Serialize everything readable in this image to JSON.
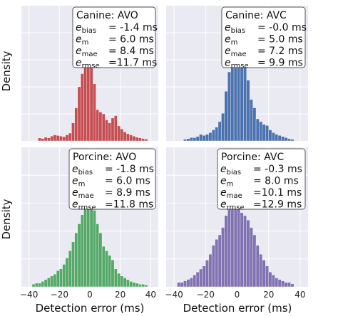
{
  "figure": {
    "ylabel": "Density",
    "xlabel": "Detection error (ms)",
    "xticks": [
      -40,
      -20,
      0,
      20,
      40
    ],
    "background": "#eaeaf2",
    "grid": true
  },
  "chart_data": [
    {
      "type": "bar",
      "panel": "top-left",
      "title": "Canine: AVO",
      "color": "#c44e52",
      "stats": [
        {
          "sym": "e",
          "sub": "bias",
          "val": "= -1.4 ms"
        },
        {
          "sym": "e",
          "sub": "m",
          "val": "= 6.0 ms"
        },
        {
          "sym": "e",
          "sub": "mae",
          "val": "= 8.4 ms"
        },
        {
          "sym": "e",
          "sub": "rmse",
          "val": "=11.7 ms"
        }
      ],
      "x": [
        -33,
        -31,
        -29,
        -27,
        -25,
        -23,
        -21,
        -19,
        -17,
        -15,
        -13,
        -11,
        -9,
        -7,
        -5,
        -3,
        -1,
        1,
        3,
        5,
        7,
        9,
        11,
        13,
        15,
        17,
        19,
        21,
        23,
        25,
        27,
        29,
        31,
        33,
        35,
        37
      ],
      "values": [
        0.005,
        0.004,
        0.006,
        0.005,
        0.008,
        0.01,
        0.009,
        0.008,
        0.007,
        0.01,
        0.013,
        0.03,
        0.055,
        0.09,
        0.112,
        0.205,
        0.188,
        0.215,
        0.095,
        0.052,
        0.048,
        0.045,
        0.035,
        0.03,
        0.038,
        0.042,
        0.025,
        0.02,
        0.015,
        0.012,
        0.01,
        0.008,
        0.006,
        0.005,
        0.004,
        0.003
      ],
      "ylim": [
        0,
        0.225
      ],
      "xlim": [
        -45,
        45
      ]
    },
    {
      "type": "bar",
      "panel": "top-right",
      "title": "Canine: AVC",
      "color": "#4c72b0",
      "stats": [
        {
          "sym": "e",
          "sub": "bias",
          "val": "= -0.0 ms"
        },
        {
          "sym": "e",
          "sub": "m",
          "val": "= 5.0 ms"
        },
        {
          "sym": "e",
          "sub": "mae",
          "val": "= 7.2 ms"
        },
        {
          "sym": "e",
          "sub": "rmse",
          "val": "= 9.9 ms"
        }
      ],
      "x": [
        -33,
        -31,
        -29,
        -27,
        -25,
        -23,
        -21,
        -19,
        -17,
        -15,
        -13,
        -11,
        -9,
        -7,
        -5,
        -3,
        -1,
        1,
        3,
        5,
        7,
        9,
        11,
        13,
        15,
        17,
        19,
        21,
        23,
        25,
        27,
        29,
        31,
        33,
        35
      ],
      "values": [
        0.003,
        0.004,
        0.006,
        0.006,
        0.008,
        0.012,
        0.01,
        0.012,
        0.015,
        0.02,
        0.025,
        0.035,
        0.05,
        0.09,
        0.125,
        0.16,
        0.195,
        0.235,
        0.2,
        0.145,
        0.11,
        0.075,
        0.06,
        0.04,
        0.035,
        0.03,
        0.028,
        0.02,
        0.015,
        0.012,
        0.01,
        0.008,
        0.006,
        0.004,
        0.003
      ],
      "ylim": [
        0,
        0.245
      ],
      "xlim": [
        -45,
        45
      ]
    },
    {
      "type": "bar",
      "panel": "bottom-left",
      "title": "Porcine: AVO",
      "color": "#55a868",
      "stats": [
        {
          "sym": "e",
          "sub": "bias",
          "val": "= -1.8 ms"
        },
        {
          "sym": "e",
          "sub": "m",
          "val": "= 6.0 ms"
        },
        {
          "sym": "e",
          "sub": "mae",
          "val": "= 8.9 ms"
        },
        {
          "sym": "e",
          "sub": "rmse",
          "val": "=11.8 ms"
        }
      ],
      "x": [
        -37,
        -35,
        -33,
        -31,
        -29,
        -27,
        -25,
        -23,
        -21,
        -19,
        -17,
        -15,
        -13,
        -11,
        -9,
        -7,
        -5,
        -3,
        -1,
        1,
        3,
        5,
        7,
        9,
        11,
        13,
        15,
        17,
        19,
        21,
        23,
        25,
        27,
        29,
        31,
        33,
        35,
        37
      ],
      "values": [
        0.003,
        0.004,
        0.004,
        0.006,
        0.008,
        0.01,
        0.012,
        0.014,
        0.018,
        0.02,
        0.025,
        0.032,
        0.04,
        0.05,
        0.06,
        0.07,
        0.08,
        0.09,
        0.095,
        0.09,
        0.085,
        0.07,
        0.06,
        0.045,
        0.04,
        0.035,
        0.03,
        0.02,
        0.015,
        0.012,
        0.01,
        0.008,
        0.006,
        0.005,
        0.004,
        0.003,
        0.003,
        0.002
      ],
      "ylim": [
        0,
        0.155
      ],
      "xlim": [
        -45,
        45
      ]
    },
    {
      "type": "bar",
      "panel": "bottom-right",
      "title": "Porcine: AVC",
      "color": "#8172b2",
      "stats": [
        {
          "sym": "e",
          "sub": "bias",
          "val": "= -0.3 ms"
        },
        {
          "sym": "e",
          "sub": "m",
          "val": "= 8.0 ms"
        },
        {
          "sym": "e",
          "sub": "mae",
          "val": "=10.1 ms"
        },
        {
          "sym": "e",
          "sub": "rmse",
          "val": "=12.9 ms"
        }
      ],
      "x": [
        -37,
        -35,
        -33,
        -31,
        -29,
        -27,
        -25,
        -23,
        -21,
        -19,
        -17,
        -15,
        -13,
        -11,
        -9,
        -7,
        -5,
        -3,
        -1,
        1,
        3,
        5,
        7,
        9,
        11,
        13,
        15,
        17,
        19,
        21,
        23,
        25,
        27,
        29,
        31,
        33,
        35
      ],
      "values": [
        0.003,
        0.003,
        0.004,
        0.005,
        0.006,
        0.008,
        0.01,
        0.012,
        0.014,
        0.018,
        0.022,
        0.028,
        0.032,
        0.035,
        0.04,
        0.048,
        0.055,
        0.058,
        0.06,
        0.057,
        0.05,
        0.048,
        0.045,
        0.04,
        0.035,
        0.028,
        0.022,
        0.018,
        0.014,
        0.01,
        0.008,
        0.006,
        0.005,
        0.004,
        0.003,
        0.003,
        0.002
      ],
      "ylim": [
        0,
        0.094
      ],
      "xlim": [
        -45,
        45
      ]
    }
  ]
}
